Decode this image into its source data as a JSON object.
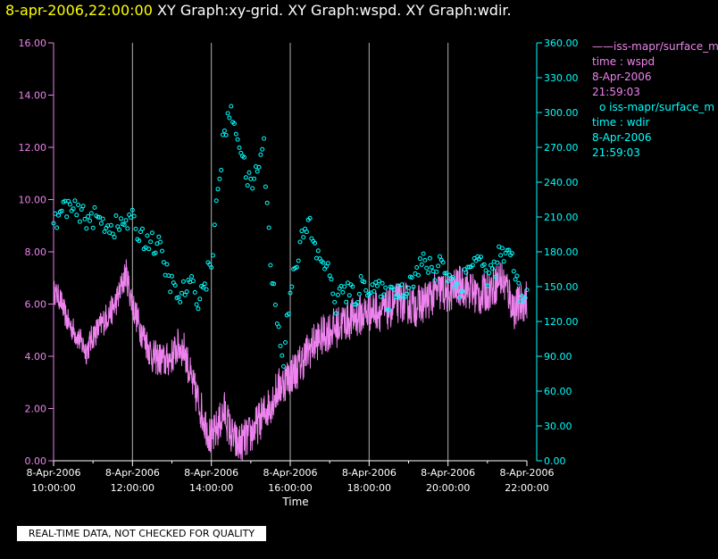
{
  "header": {
    "timestamp": "8-apr-2006,22:00:00",
    "titles": "XY Graph:xy-grid.  XY Graph:wspd.  XY Graph:wdir."
  },
  "legend": {
    "wspd": {
      "line_sample": "——",
      "name": "iss-mapr/surface_m",
      "var": "time : wspd",
      "date": "8-Apr-2006",
      "time": "21:59:03"
    },
    "wdir": {
      "marker": "o",
      "name": "iss-mapr/surface_m",
      "var": "time : wdir",
      "date": "8-Apr-2006",
      "time": "21:59:03"
    }
  },
  "notice": "REAL-TIME DATA, NOT CHECKED FOR QUALITY",
  "colors": {
    "wspd": "#ee82ee",
    "wdir": "#00ffff",
    "grid": "#b0b0b0",
    "axis": "#ffffff",
    "timestamp": "#ffff00"
  },
  "chart_data": {
    "type": "line",
    "xlabel": "Time",
    "x_ticks": [
      {
        "date": "8-Apr-2006",
        "time": "10:00:00"
      },
      {
        "date": "8-Apr-2006",
        "time": "12:00:00"
      },
      {
        "date": "8-Apr-2006",
        "time": "14:00:00"
      },
      {
        "date": "8-Apr-2006",
        "time": "16:00:00"
      },
      {
        "date": "8-Apr-2006",
        "time": "18:00:00"
      },
      {
        "date": "8-Apr-2006",
        "time": "20:00:00"
      },
      {
        "date": "8-Apr-2006",
        "time": "22:00:00"
      }
    ],
    "xlim": [
      "10:00",
      "22:00"
    ],
    "grid": true,
    "left_axis": {
      "ylim": [
        0,
        16
      ],
      "ticks": [
        "0.00",
        "2.00",
        "4.00",
        "6.00",
        "8.00",
        "10.00",
        "12.00",
        "14.00",
        "16.00"
      ]
    },
    "right_axis": {
      "ylim": [
        0,
        360
      ],
      "ticks": [
        "0.00",
        "30.00",
        "60.00",
        "90.00",
        "120.00",
        "150.00",
        "180.00",
        "210.00",
        "240.00",
        "270.00",
        "300.00",
        "330.00",
        "360.00"
      ]
    },
    "series": [
      {
        "axis": "left",
        "style": "line",
        "x": [
          "10:00",
          "10:10",
          "10:20",
          "10:30",
          "10:40",
          "10:50",
          "11:00",
          "11:10",
          "11:20",
          "11:30",
          "11:40",
          "11:50",
          "12:00",
          "12:10",
          "12:20",
          "12:30",
          "12:40",
          "12:50",
          "13:00",
          "13:10",
          "13:20",
          "13:30",
          "13:40",
          "13:50",
          "14:00",
          "14:10",
          "14:20",
          "14:30",
          "14:40",
          "14:50",
          "15:00",
          "15:10",
          "15:20",
          "15:30",
          "15:40",
          "15:50",
          "16:00",
          "16:10",
          "16:20",
          "16:30",
          "16:40",
          "16:50",
          "17:00",
          "17:10",
          "17:20",
          "17:30",
          "17:40",
          "17:50",
          "18:00",
          "18:10",
          "18:20",
          "18:30",
          "18:40",
          "18:50",
          "19:00",
          "19:10",
          "19:20",
          "19:30",
          "19:40",
          "19:50",
          "20:00",
          "20:10",
          "20:20",
          "20:30",
          "20:40",
          "20:50",
          "21:00",
          "21:10",
          "21:20",
          "21:30",
          "21:40",
          "21:50",
          "22:00"
        ],
        "values": [
          6.5,
          6.2,
          5.4,
          5.0,
          4.6,
          4.2,
          4.8,
          5.1,
          5.5,
          5.8,
          6.4,
          7.2,
          6.0,
          5.2,
          4.6,
          4.0,
          3.9,
          3.8,
          4.0,
          4.4,
          4.2,
          3.0,
          2.3,
          1.5,
          0.8,
          1.3,
          1.9,
          1.0,
          0.6,
          0.8,
          1.0,
          1.4,
          1.8,
          2.2,
          2.7,
          3.0,
          3.3,
          3.5,
          3.9,
          4.3,
          4.6,
          4.8,
          5.0,
          5.1,
          5.3,
          5.4,
          5.5,
          5.6,
          5.7,
          5.8,
          5.7,
          5.8,
          6.0,
          6.1,
          6.0,
          5.9,
          6.0,
          6.2,
          6.4,
          6.5,
          6.4,
          6.6,
          6.7,
          6.6,
          6.4,
          6.3,
          6.5,
          6.7,
          7.0,
          6.6,
          5.8,
          6.0,
          6.2
        ],
        "noise": 0.8
      },
      {
        "axis": "right",
        "style": "scatter",
        "x": [
          "10:00",
          "10:10",
          "10:20",
          "10:30",
          "10:40",
          "10:50",
          "11:00",
          "11:10",
          "11:20",
          "11:30",
          "11:40",
          "11:50",
          "12:00",
          "12:10",
          "12:20",
          "12:30",
          "12:40",
          "12:50",
          "13:00",
          "13:10",
          "13:20",
          "13:30",
          "13:40",
          "13:50",
          "14:00",
          "14:10",
          "14:20",
          "14:30",
          "14:40",
          "14:50",
          "15:00",
          "15:10",
          "15:20",
          "15:30",
          "15:40",
          "15:50",
          "16:00",
          "16:10",
          "16:20",
          "16:30",
          "16:40",
          "16:50",
          "17:00",
          "17:10",
          "17:20",
          "17:30",
          "17:40",
          "17:50",
          "18:00",
          "18:10",
          "18:20",
          "18:30",
          "18:40",
          "18:50",
          "19:00",
          "19:10",
          "19:20",
          "19:30",
          "19:40",
          "19:50",
          "20:00",
          "20:10",
          "20:20",
          "20:30",
          "20:40",
          "20:50",
          "21:00",
          "21:10",
          "21:20",
          "21:30",
          "21:40",
          "21:50",
          "22:00"
        ],
        "values": [
          202,
          212,
          220,
          215,
          211,
          210,
          209,
          207,
          204,
          202,
          201,
          206,
          206,
          196,
          191,
          188,
          184,
          166,
          151,
          139,
          148,
          150,
          141,
          151,
          172,
          230,
          285,
          298,
          284,
          252,
          235,
          253,
          270,
          174,
          120,
          85,
          151,
          175,
          194,
          203,
          175,
          175,
          157,
          136,
          147,
          143,
          142,
          152,
          152,
          149,
          143,
          138,
          150,
          145,
          155,
          160,
          170,
          168,
          162,
          175,
          160,
          152,
          150,
          165,
          175,
          170,
          160,
          165,
          178,
          175,
          170,
          138,
          140
        ],
        "jitter": 10
      }
    ]
  }
}
